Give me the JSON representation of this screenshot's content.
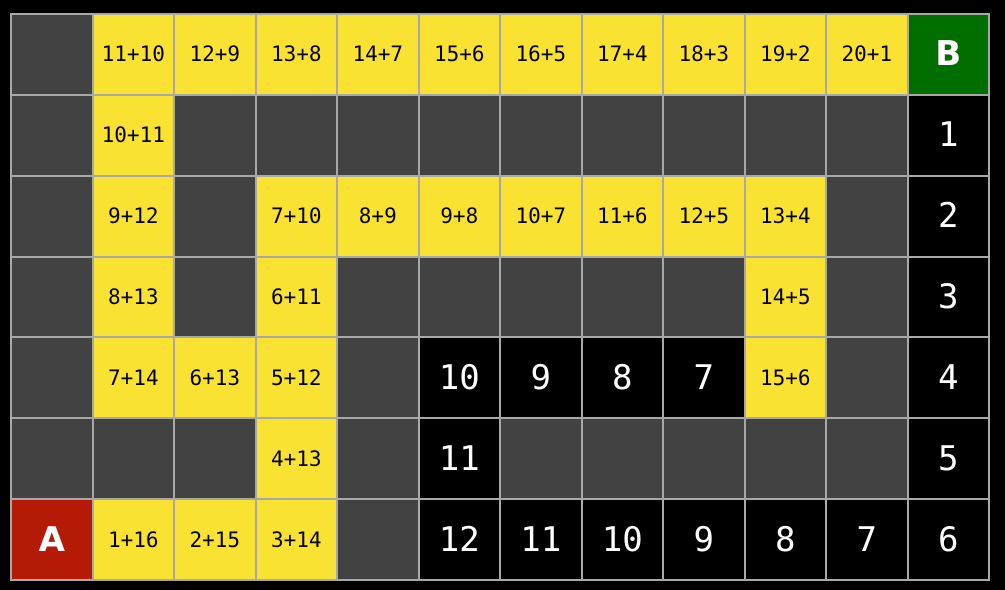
{
  "colors": {
    "wall": "#424242",
    "path": "#f9e231",
    "count": "#000000",
    "start": "#b51a06",
    "goal": "#006f00"
  },
  "grid": [
    [
      [
        "d",
        ""
      ],
      [
        "y",
        "11+10"
      ],
      [
        "y",
        "12+9"
      ],
      [
        "y",
        "13+8"
      ],
      [
        "y",
        "14+7"
      ],
      [
        "y",
        "15+6"
      ],
      [
        "y",
        "16+5"
      ],
      [
        "y",
        "17+4"
      ],
      [
        "y",
        "18+3"
      ],
      [
        "y",
        "19+2"
      ],
      [
        "y",
        "20+1"
      ],
      [
        "b",
        "B"
      ]
    ],
    [
      [
        "d",
        ""
      ],
      [
        "y",
        "10+11"
      ],
      [
        "d",
        ""
      ],
      [
        "d",
        ""
      ],
      [
        "d",
        ""
      ],
      [
        "d",
        ""
      ],
      [
        "d",
        ""
      ],
      [
        "d",
        ""
      ],
      [
        "d",
        ""
      ],
      [
        "d",
        ""
      ],
      [
        "d",
        ""
      ],
      [
        "k",
        "1"
      ]
    ],
    [
      [
        "d",
        ""
      ],
      [
        "y",
        "9+12"
      ],
      [
        "d",
        ""
      ],
      [
        "y",
        "7+10"
      ],
      [
        "y",
        "8+9"
      ],
      [
        "y",
        "9+8"
      ],
      [
        "y",
        "10+7"
      ],
      [
        "y",
        "11+6"
      ],
      [
        "y",
        "12+5"
      ],
      [
        "y",
        "13+4"
      ],
      [
        "d",
        ""
      ],
      [
        "k",
        "2"
      ]
    ],
    [
      [
        "d",
        ""
      ],
      [
        "y",
        "8+13"
      ],
      [
        "d",
        ""
      ],
      [
        "y",
        "6+11"
      ],
      [
        "d",
        ""
      ],
      [
        "d",
        ""
      ],
      [
        "d",
        ""
      ],
      [
        "d",
        ""
      ],
      [
        "d",
        ""
      ],
      [
        "y",
        "14+5"
      ],
      [
        "d",
        ""
      ],
      [
        "k",
        "3"
      ]
    ],
    [
      [
        "d",
        ""
      ],
      [
        "y",
        "7+14"
      ],
      [
        "y",
        "6+13"
      ],
      [
        "y",
        "5+12"
      ],
      [
        "d",
        ""
      ],
      [
        "k",
        "10"
      ],
      [
        "k",
        "9"
      ],
      [
        "k",
        "8"
      ],
      [
        "k",
        "7"
      ],
      [
        "y",
        "15+6"
      ],
      [
        "d",
        ""
      ],
      [
        "k",
        "4"
      ]
    ],
    [
      [
        "d",
        ""
      ],
      [
        "d",
        ""
      ],
      [
        "d",
        ""
      ],
      [
        "y",
        "4+13"
      ],
      [
        "d",
        ""
      ],
      [
        "k",
        "11"
      ],
      [
        "d",
        ""
      ],
      [
        "d",
        ""
      ],
      [
        "d",
        ""
      ],
      [
        "d",
        ""
      ],
      [
        "d",
        ""
      ],
      [
        "k",
        "5"
      ]
    ],
    [
      [
        "a",
        "A"
      ],
      [
        "y",
        "1+16"
      ],
      [
        "y",
        "2+15"
      ],
      [
        "y",
        "3+14"
      ],
      [
        "d",
        ""
      ],
      [
        "k",
        "12"
      ],
      [
        "k",
        "11"
      ],
      [
        "k",
        "10"
      ],
      [
        "k",
        "9"
      ],
      [
        "k",
        "8"
      ],
      [
        "k",
        "7"
      ],
      [
        "k",
        "6"
      ]
    ]
  ]
}
